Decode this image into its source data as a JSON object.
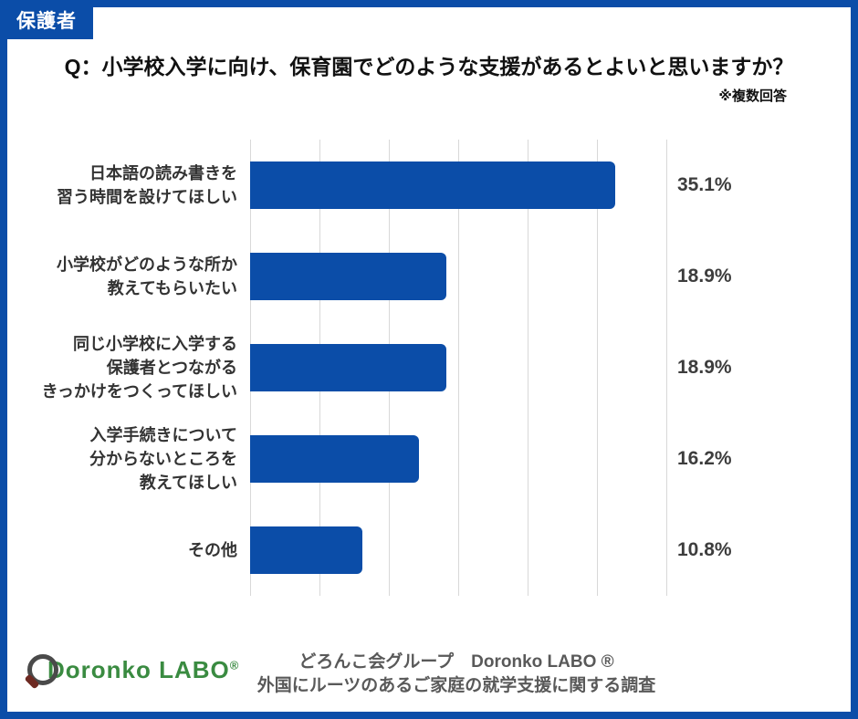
{
  "badge": {
    "label": "保護者"
  },
  "header": {
    "question": "Q：小学校入学に向け、保育園でどのような支援があるとよいと思いますか？",
    "note": "※複数回答"
  },
  "chart_data": {
    "type": "bar",
    "orientation": "horizontal",
    "categories": [
      "日本語の読み書きを\n習う時間を設けてほしい",
      "小学校がどのような所か\n教えてもらいたい",
      "同じ小学校に入学する\n保護者とつながる\nきっかけをつくってほしい",
      "入学手続きについて\n分からないところを\n教えてほしい",
      "その他"
    ],
    "values": [
      35.1,
      18.9,
      18.9,
      16.2,
      10.8
    ],
    "value_labels": [
      "35.1%",
      "18.9%",
      "18.9%",
      "16.2%",
      "10.8%"
    ],
    "value_suffix": "%",
    "title": "",
    "xlabel": "",
    "ylabel": "",
    "xlim": [
      0,
      40
    ],
    "grid": true,
    "grid_divisions": 6,
    "bar_color": "#0b4da8",
    "legend": "none"
  },
  "footer": {
    "logo_text": "Doronko LABO",
    "logo_reg": "®",
    "credit_line1": "どろんこ会グループ　Doronko LABO ®",
    "credit_line2": "外国にルーツのあるご家庭の就学支援に関する調査"
  },
  "colors": {
    "accent_blue": "#0b4da8",
    "logo_green": "#3a8b41",
    "gridline_gray": "#d8d8d8",
    "text_gray": "#333333"
  }
}
